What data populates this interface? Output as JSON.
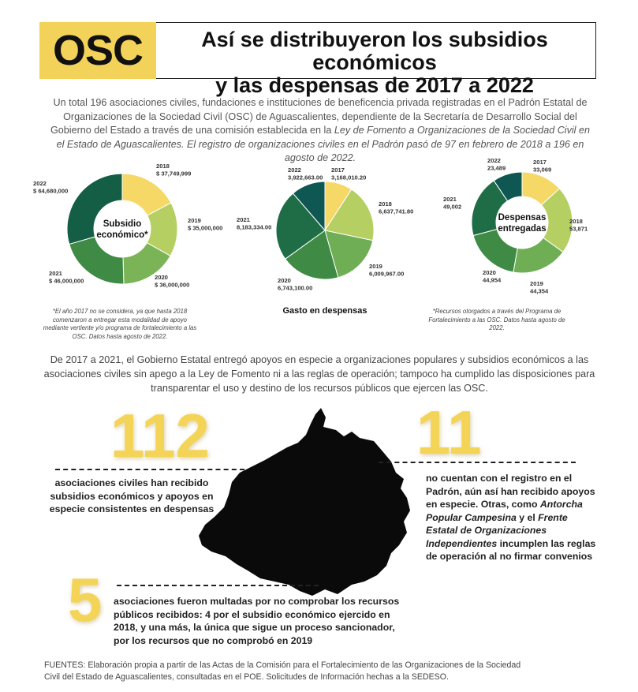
{
  "header": {
    "badge": "OSC",
    "title_line1": "Así se distribuyeron los subsidios económicos",
    "title_line2": "y las despensas de 2017 a 2022"
  },
  "intro": {
    "part1": "Un total 196 asociaciones civiles, fundaciones e instituciones de beneficencia privada registradas en el Padrón Estatal de Organizaciones de la Sociedad Civil (OSC) de Aguascalientes, dependiente de la Secretaría de Desarrollo Social del Gobierno del Estado a través de una comisión establecida en la ",
    "law": "Ley de Fomento a Organizaciones de la Sociedad Civil en el Estado de Aguascalientes.",
    "part2": " El registro de organizaciones civiles en el Padrón pasó de 97 en febrero de 2018 a 196 en agosto de 2022."
  },
  "chart_data": [
    {
      "type": "pie",
      "variant": "donut",
      "center_label_1": "Subsidio",
      "center_label_2": "económico*",
      "categories": [
        "2018",
        "2019",
        "2020",
        "2021",
        "2022"
      ],
      "values": [
        37749999,
        35000000,
        36000000,
        46000000,
        64680000
      ],
      "data_labels": [
        "$ 37,749,999",
        "$ 35,000,000",
        "$ 36,000,000",
        "$ 46,000,000",
        "$ 64,680,000"
      ],
      "colors": [
        "#f6d866",
        "#b5cf63",
        "#7bb457",
        "#3f8b46",
        "#145e45"
      ],
      "note": "*El año 2017 no se considera, ya que hasta 2018 comenzaron a entregar esta modalidad de apoyo mediante vertiente y/o programa de fortalecimiento a las OSC. Datos hasta agosto de 2022."
    },
    {
      "type": "pie",
      "title": "Gasto en despensas",
      "categories": [
        "2017",
        "2018",
        "2019",
        "2020",
        "2021",
        "2022"
      ],
      "values": [
        3168010.2,
        6637741.8,
        6009967.0,
        6743100.0,
        8183334.0,
        3922663.0
      ],
      "data_labels": [
        "3,168,010.20",
        "6,637,741.80",
        "6,009,967.00",
        "6,743,100.00",
        "8,183,334.00",
        "3,922,663.00"
      ],
      "colors": [
        "#f6d866",
        "#b5cf63",
        "#6fae55",
        "#3f8b46",
        "#1f6d46",
        "#0f5753"
      ]
    },
    {
      "type": "pie",
      "variant": "donut",
      "center_label_1": "Despensas",
      "center_label_2": "entregadas",
      "categories": [
        "2017",
        "2018",
        "2019",
        "2020",
        "2021",
        "2022"
      ],
      "values": [
        33069,
        53871,
        44354,
        44954,
        49002,
        23489
      ],
      "data_labels": [
        "33,069",
        "53,871",
        "44,354",
        "44,954",
        "49,002",
        "23,489"
      ],
      "colors": [
        "#f6d866",
        "#b5cf63",
        "#6fae55",
        "#3f8b46",
        "#1f6d46",
        "#0f5753"
      ],
      "note": "*Recursos otorgados a través del Programa de Fortalecimiento a las OSC. Datos hasta agosto de 2022."
    }
  ],
  "para2": "De 2017 a 2021, el Gobierno Estatal entregó apoyos en especie a organizaciones populares y subsidios económicos a las asociaciones civiles sin apego a la Ley de Fomento ni a las reglas de operación; tampoco ha cumplido las disposiciones para transparentar el uso y destino de los recursos públicos que ejercen las OSC.",
  "stats": {
    "s112": {
      "number": "112",
      "text": "asociaciones civiles han recibido subsidios económicos y apoyos en especie consistentes en despensas"
    },
    "s11": {
      "number": "11",
      "t1": "no cuentan con el registro en el Padrón, aún así han recibido apoyos en especie. Otras, como ",
      "i1": "Antorcha Popular Campesina",
      "t2": " y el ",
      "i2": "Frente Estatal de Organizaciones Independientes",
      "t3": " incumplen las reglas de operación al no firmar convenios"
    },
    "s5": {
      "number": "5",
      "text": "asociaciones fueron multadas por no comprobar los recursos públicos recibidos: 4 por el subsidio económico ejercido en 2018, y una más, la única que sigue un proceso sancionador, por los recursos que no comprobó en 2019"
    }
  },
  "sources": {
    "line1": "FUENTES:  Elaboración propia a partir de las Actas de la Comisión para el Fortalecimiento de las Organizaciones de la Sociedad",
    "line2": "Civil del Estado de Aguascalientes, consultadas en el POE.  Solicitudes de Información hechas a la SEDESO."
  }
}
